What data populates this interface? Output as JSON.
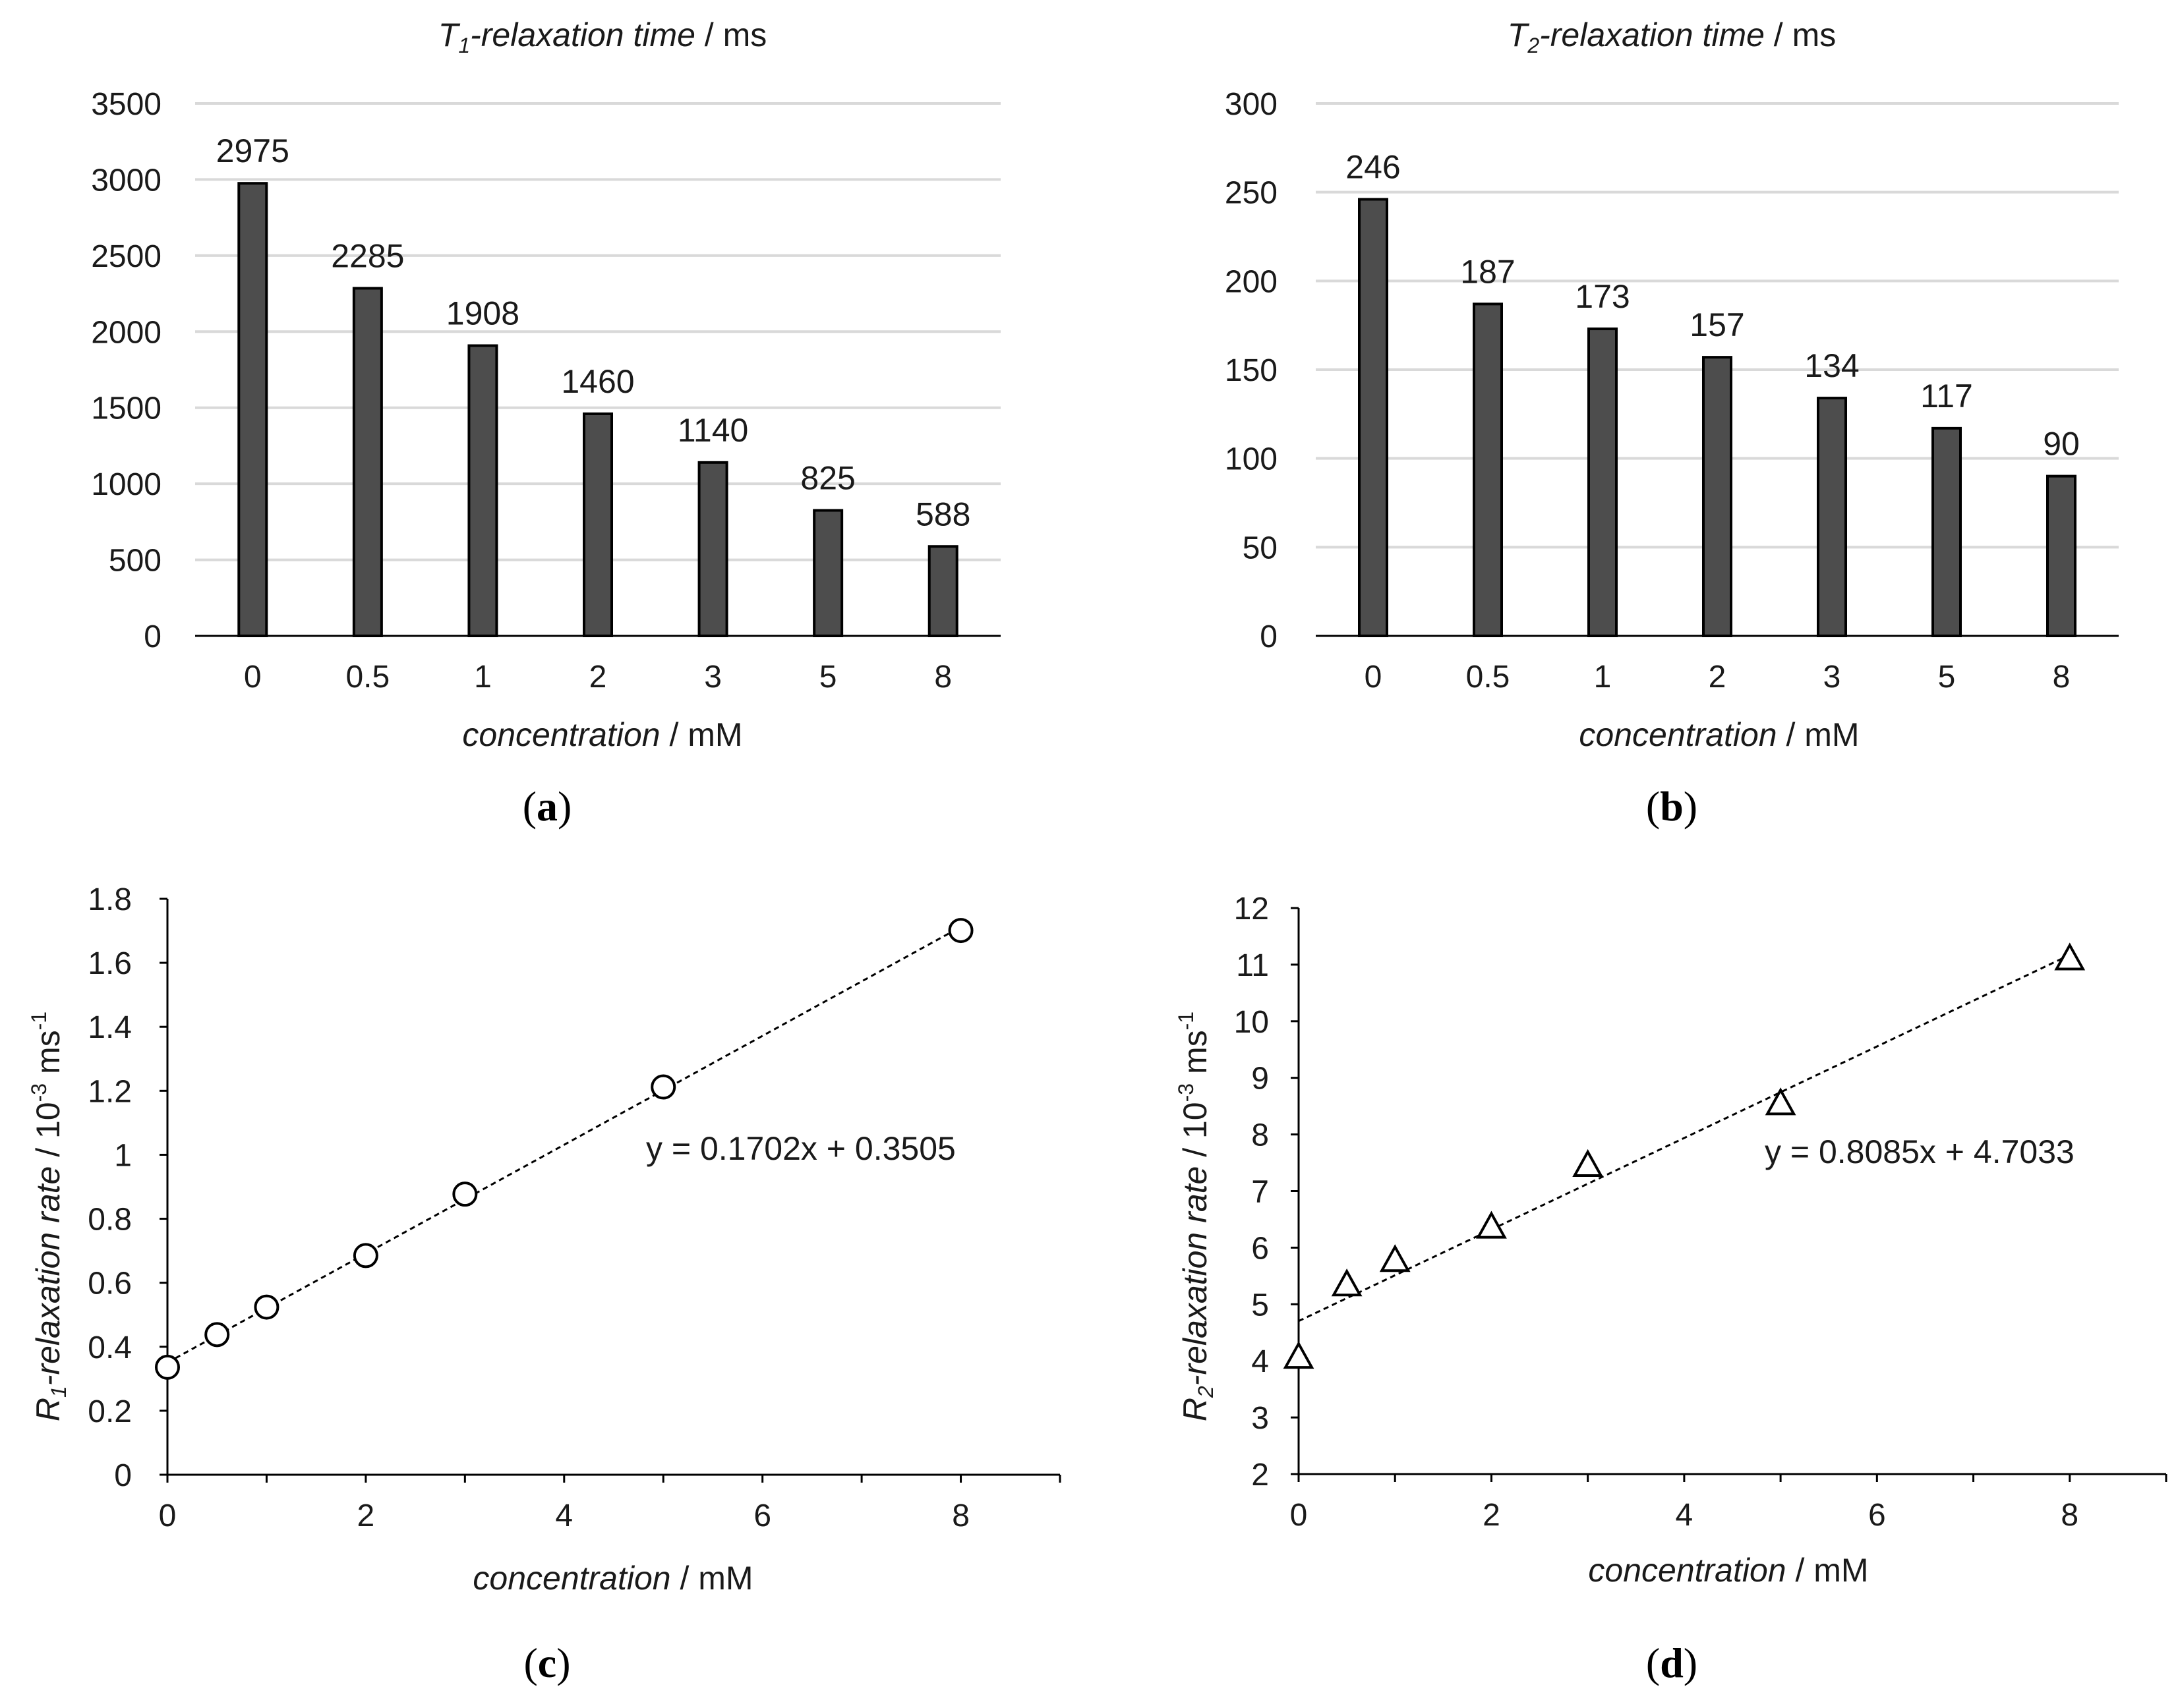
{
  "chart_data": [
    {
      "panel": "(a)",
      "type": "bar",
      "title": {
        "symbol": "T",
        "subscript": "1",
        "italic": "-relaxation time",
        "unit": " / ms"
      },
      "xlabel": {
        "italic": "concentration",
        "unit": " / mM"
      },
      "categories": [
        "0",
        "0.5",
        "1",
        "2",
        "3",
        "5",
        "8"
      ],
      "values": [
        2975,
        2285,
        1908,
        1460,
        1140,
        825,
        588
      ],
      "ylim": [
        0,
        3500
      ],
      "yticks": [
        0,
        500,
        1000,
        1500,
        2000,
        2500,
        3000,
        3500
      ],
      "grid": true,
      "bar_color": "#4d4d4d"
    },
    {
      "panel": "(b)",
      "type": "bar",
      "title": {
        "symbol": "T",
        "subscript": "2",
        "italic": "-relaxation time",
        "unit": " / ms"
      },
      "xlabel": {
        "italic": "concentration",
        "unit": " / mM"
      },
      "categories": [
        "0",
        "0.5",
        "1",
        "2",
        "3",
        "5",
        "8"
      ],
      "values": [
        246,
        187,
        173,
        157,
        134,
        117,
        90
      ],
      "ylim": [
        0,
        300
      ],
      "yticks": [
        0,
        50,
        100,
        150,
        200,
        250,
        300
      ],
      "grid": true,
      "bar_color": "#4d4d4d"
    },
    {
      "panel": "(c)",
      "type": "scatter",
      "marker": "circle",
      "xlabel": {
        "italic": "concentration",
        "unit": " / mM"
      },
      "ylabel": {
        "symbol": "R",
        "subscript": "1",
        "italic": "-relaxation rate",
        "unit": " / 10",
        "sup": "-3",
        "unit2": " ms",
        "sup2": "-1"
      },
      "x": [
        0,
        0.5,
        1,
        2,
        3,
        5,
        8
      ],
      "y": [
        0.336,
        0.438,
        0.524,
        0.685,
        0.877,
        1.212,
        1.701
      ],
      "xlim": [
        0,
        9
      ],
      "ylim": [
        0,
        1.8
      ],
      "xticks": [
        0,
        2,
        4,
        6,
        8
      ],
      "xtick_labels": [
        "0",
        "2",
        "4",
        "6",
        "8"
      ],
      "yticks": [
        0,
        0.2,
        0.4,
        0.6,
        0.8,
        1,
        1.2,
        1.4,
        1.6,
        1.8
      ],
      "ytick_labels": [
        "0",
        "0.2",
        "0.4",
        "0.6",
        "0.8",
        "1",
        "1.2",
        "1.4",
        "1.6",
        "1.8"
      ],
      "trendline": {
        "slope": 0.1702,
        "intercept": 0.3505,
        "x_range": [
          0,
          8
        ]
      },
      "equation": "y = 0.1702x + 0.3505"
    },
    {
      "panel": "(d)",
      "type": "scatter",
      "marker": "triangle",
      "xlabel": {
        "italic": "concentration",
        "unit": "  / mM"
      },
      "ylabel": {
        "symbol": "R",
        "subscript": "2",
        "italic": "-relaxation rate",
        "unit": "  / 10",
        "sup": "-3",
        "unit2": " ms",
        "sup2": "-1"
      },
      "x": [
        0,
        0.5,
        1,
        2,
        3,
        5,
        8
      ],
      "y": [
        4.07,
        5.35,
        5.78,
        6.37,
        7.46,
        8.55,
        11.11
      ],
      "xlim": [
        0,
        9
      ],
      "ylim": [
        2,
        12
      ],
      "xticks": [
        0,
        2,
        4,
        6,
        8
      ],
      "xtick_labels": [
        "0",
        "2",
        "4",
        "6",
        "8"
      ],
      "yticks": [
        2,
        3,
        4,
        5,
        6,
        7,
        8,
        9,
        10,
        11,
        12
      ],
      "ytick_labels": [
        "2",
        "3",
        "4",
        "5",
        "6",
        "7",
        "8",
        "9",
        "10",
        "11",
        "12"
      ],
      "trendline": {
        "slope": 0.8085,
        "intercept": 4.7033,
        "x_range": [
          0,
          8
        ]
      },
      "equation": "y = 0.8085x + 4.7033"
    }
  ]
}
